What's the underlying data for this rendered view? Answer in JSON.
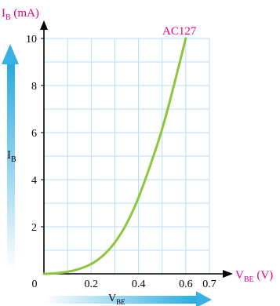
{
  "chart_data": {
    "type": "line",
    "title": "",
    "y_axis": {
      "label_main": "I",
      "label_sub": "B",
      "label_unit": " (mA)",
      "ylim": [
        0,
        10
      ],
      "ticks": [
        2,
        4,
        6,
        8,
        10
      ],
      "tick_labels": [
        "2",
        "4",
        "6",
        "8",
        "10"
      ],
      "side_label_main": "I",
      "side_label_sub": "B"
    },
    "x_axis": {
      "label_main": "V",
      "label_sub": "BE",
      "label_unit": " (V)",
      "xlim": [
        0,
        0.7
      ],
      "tick_labels": [
        {
          "x": 0,
          "text": "0"
        },
        {
          "x": 0.2,
          "text": "0.2"
        },
        {
          "x": 0.4,
          "text": "0.4"
        },
        {
          "x": 0.6,
          "text": "0.6"
        },
        {
          "x": 0.7,
          "text": "0.7"
        }
      ],
      "bottom_label_main": "V",
      "bottom_label_sub": "BE"
    },
    "grid": true,
    "series": [
      {
        "name": "AC127",
        "color": "#8cc63f",
        "x": [
          0,
          0.05,
          0.1,
          0.15,
          0.2,
          0.25,
          0.3,
          0.35,
          0.4,
          0.45,
          0.5,
          0.55,
          0.6
        ],
        "y": [
          0,
          0.02,
          0.08,
          0.2,
          0.4,
          0.75,
          1.3,
          2.1,
          3.2,
          4.6,
          6.1,
          8.0,
          10.0
        ]
      }
    ],
    "colors": {
      "label_magenta": "#e6007e",
      "arrow_blue": "#29abe2",
      "grid": "#b9def3",
      "axis": "#000000",
      "curve": "#8cc63f"
    }
  }
}
